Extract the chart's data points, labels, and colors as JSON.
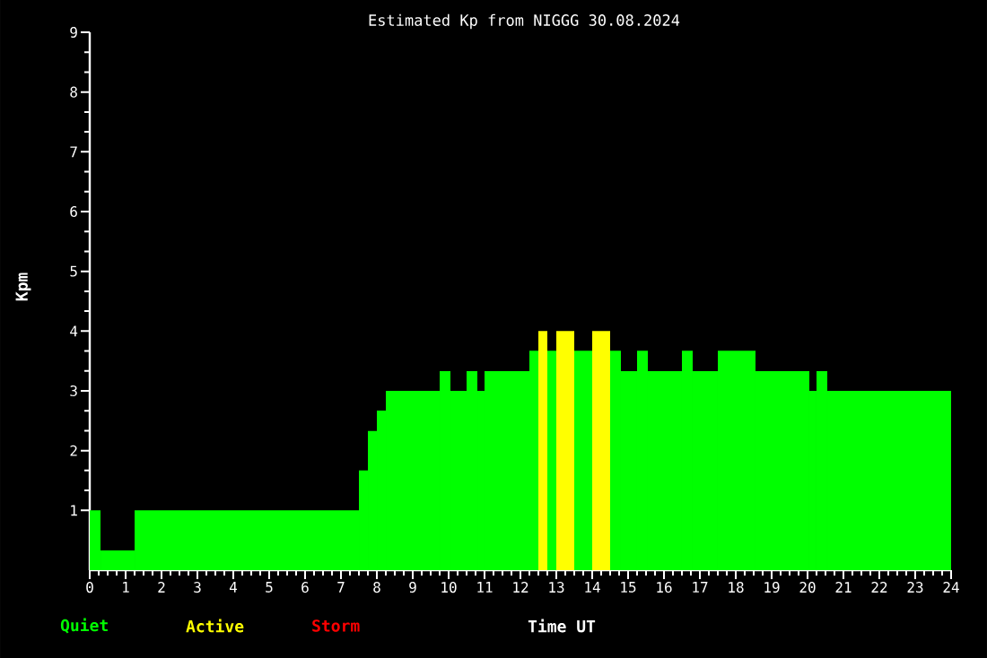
{
  "chart_data": {
    "type": "histogram",
    "title": "Estimated Kp from NIGGG 30.08.2024",
    "xlabel": "Time UT",
    "ylabel": "Kpm",
    "bins": [
      0,
      0.3,
      1.25,
      7.5,
      7.75,
      8.0,
      8.25,
      9.75,
      10.05,
      10.5,
      10.8,
      11.0,
      12.25,
      12.5,
      12.75,
      13.0,
      13.5,
      14.0,
      14.5,
      14.8,
      15.25,
      15.55,
      16.5,
      16.8,
      17.5,
      18.55,
      20.05,
      20.25,
      20.55,
      24
    ],
    "series": [
      {
        "name": "Quiet",
        "color": "#00ff00",
        "values": [
          1,
          0.33,
          1,
          1.67,
          2.33,
          2.67,
          3,
          3.33,
          3,
          3.33,
          3,
          3.33,
          3.67,
          null,
          3.67,
          null,
          3.67,
          null,
          3.67,
          3.33,
          3.67,
          3.33,
          3.67,
          3.33,
          3.67,
          3.33,
          3,
          3.33,
          3
        ]
      },
      {
        "name": "Active",
        "color": "#ffff00",
        "values": [
          null,
          null,
          null,
          null,
          null,
          null,
          null,
          null,
          null,
          null,
          null,
          null,
          null,
          4,
          null,
          4,
          null,
          4,
          null,
          null,
          null,
          null,
          null,
          null,
          null,
          null,
          null,
          null,
          null
        ]
      }
    ],
    "annotations": [
      "Storm"
    ],
    "xlim": [
      0,
      24
    ],
    "xticks": [
      0,
      1,
      2,
      3,
      4,
      5,
      6,
      7,
      8,
      9,
      10,
      11,
      12,
      13,
      14,
      15,
      16,
      17,
      18,
      19,
      20,
      21,
      22,
      23,
      24
    ],
    "ylim": [
      0,
      9
    ],
    "yticks": [
      1,
      2,
      3,
      4,
      5,
      6,
      7,
      8,
      9
    ],
    "legend": "bottom left"
  }
}
